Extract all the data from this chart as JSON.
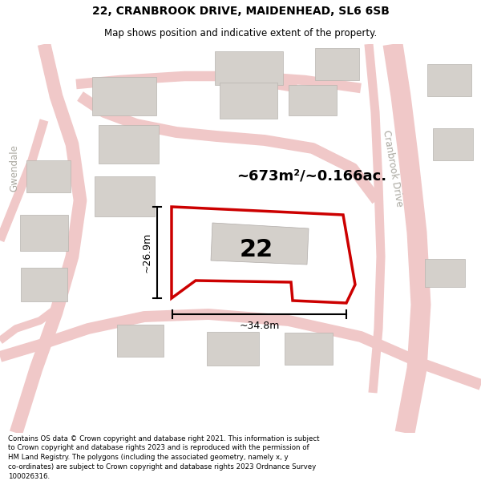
{
  "title": "22, CRANBROOK DRIVE, MAIDENHEAD, SL6 6SB",
  "subtitle": "Map shows position and indicative extent of the property.",
  "footer": "Contains OS data © Crown copyright and database right 2021. This information is subject to Crown copyright and database rights 2023 and is reproduced with the permission of HM Land Registry. The polygons (including the associated geometry, namely x, y co-ordinates) are subject to Crown copyright and database rights 2023 Ordnance Survey 100026316.",
  "area_label": "~673m²/~0.166ac.",
  "width_label": "~34.8m",
  "height_label": "~26.9m",
  "number_label": "22",
  "map_bg": "#f0eeeb",
  "plot_fill": "#ffffff",
  "plot_edge": "#cc0000",
  "building_color": "#d4d0cb",
  "road_color": "#f0c8c8",
  "street_label_cranbrook": "Cranbrook Drive",
  "street_label_gwendale": "Gwendale",
  "footer_bg": "#ffffff",
  "title_bg": "#ffffff"
}
